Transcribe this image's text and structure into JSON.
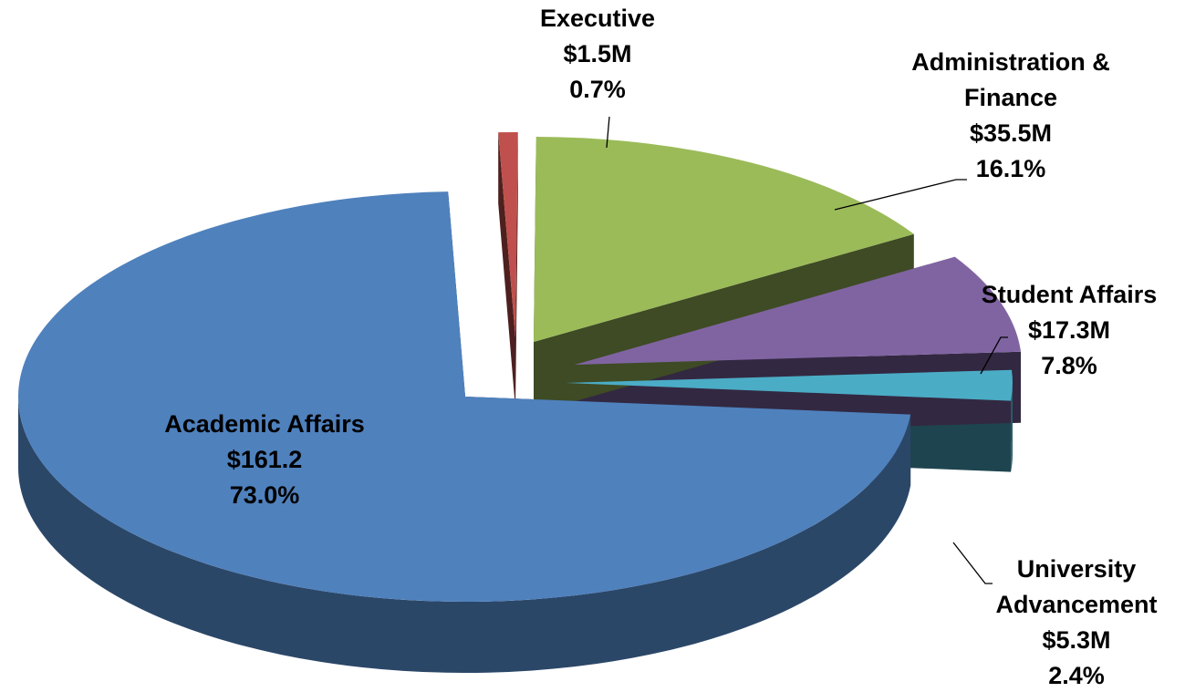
{
  "chart_data": {
    "type": "pie3d",
    "categories": [
      "Academic Affairs",
      "Executive",
      "Administration & Finance",
      "Student Affairs",
      "University Advancement"
    ],
    "values": [
      73.0,
      0.7,
      16.1,
      7.8,
      2.4
    ],
    "value_labels": [
      "73.0%",
      "0.7%",
      "16.1%",
      "7.8%",
      "2.4%"
    ],
    "amounts": [
      161.2,
      1.5,
      35.5,
      17.3,
      5.3
    ],
    "amount_labels": [
      "$161.2",
      "$1.5M",
      "$35.5M",
      "$17.3M",
      "$5.3M"
    ],
    "colors": [
      "#4f81bd",
      "#c0504d",
      "#9bbb59",
      "#8064a2",
      "#4bacc6"
    ]
  }
}
